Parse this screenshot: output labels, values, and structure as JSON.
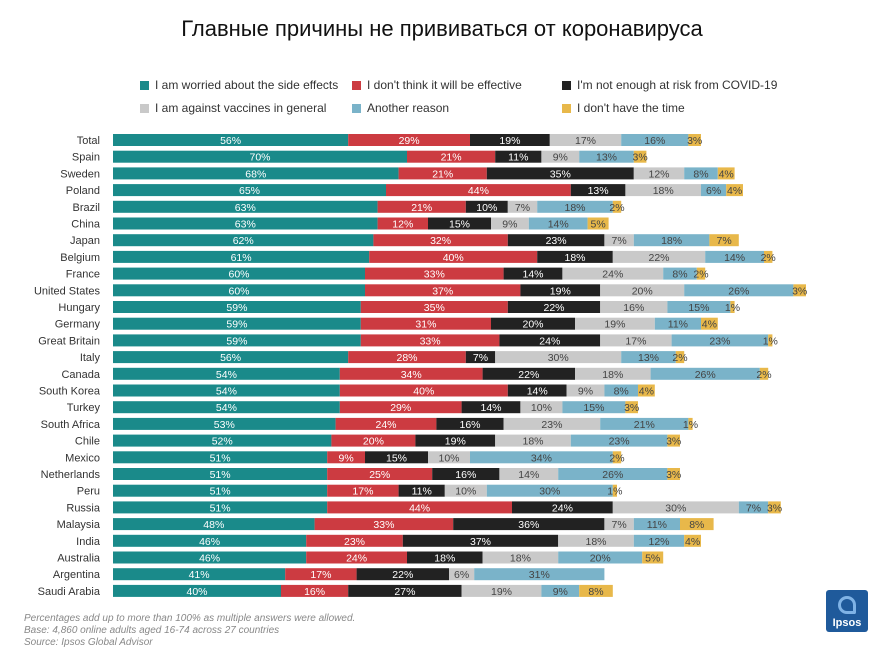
{
  "chart_data": {
    "type": "bar",
    "orientation": "horizontal",
    "stacked": true,
    "title": "Главные причины не прививаться от коронавируса",
    "categories": [
      "Total",
      "Spain",
      "Sweden",
      "Poland",
      "Brazil",
      "China",
      "Japan",
      "Belgium",
      "France",
      "United States",
      "Hungary",
      "Germany",
      "Great Britain",
      "Italy",
      "Canada",
      "South Korea",
      "Turkey",
      "South Africa",
      "Chile",
      "Mexico",
      "Netherlands",
      "Peru",
      "Russia",
      "Malaysia",
      "India",
      "Australia",
      "Argentina",
      "Saudi Arabia"
    ],
    "series": [
      {
        "name": "I am worried about the side effects",
        "color": "#1a8a8a",
        "values": [
          56,
          70,
          68,
          65,
          63,
          63,
          62,
          61,
          60,
          60,
          59,
          59,
          59,
          56,
          54,
          54,
          54,
          53,
          52,
          51,
          51,
          51,
          51,
          48,
          46,
          46,
          41,
          40
        ]
      },
      {
        "name": "I don't think it will be effective",
        "color": "#cc3b41",
        "values": [
          29,
          21,
          21,
          44,
          21,
          12,
          32,
          40,
          33,
          37,
          35,
          31,
          33,
          28,
          34,
          40,
          29,
          24,
          20,
          9,
          25,
          17,
          44,
          33,
          23,
          24,
          17,
          16
        ]
      },
      {
        "name": "I'm not enough at risk from COVID-19",
        "color": "#222222",
        "values": [
          19,
          11,
          35,
          13,
          10,
          15,
          23,
          18,
          14,
          19,
          22,
          20,
          24,
          7,
          22,
          14,
          14,
          16,
          19,
          15,
          16,
          11,
          24,
          36,
          37,
          18,
          22,
          27
        ]
      },
      {
        "name": "I am against vaccines in general",
        "color": "#c9c9c9",
        "values": [
          17,
          9,
          12,
          18,
          7,
          9,
          7,
          22,
          24,
          20,
          16,
          19,
          17,
          30,
          18,
          9,
          10,
          23,
          18,
          10,
          14,
          10,
          30,
          7,
          18,
          18,
          6,
          19
        ]
      },
      {
        "name": "Another reason",
        "color": "#7ab3c9",
        "values": [
          16,
          13,
          8,
          6,
          18,
          14,
          18,
          14,
          8,
          26,
          15,
          11,
          23,
          13,
          26,
          8,
          15,
          21,
          23,
          34,
          26,
          30,
          7,
          11,
          12,
          20,
          31,
          9
        ]
      },
      {
        "name": "I don't have the time",
        "color": "#e8b84a",
        "values": [
          3,
          3,
          4,
          4,
          2,
          5,
          7,
          2,
          2,
          3,
          1,
          4,
          1,
          2,
          2,
          4,
          3,
          1,
          3,
          2,
          3,
          1,
          3,
          8,
          4,
          5,
          null,
          8
        ]
      }
    ],
    "value_suffix": "%",
    "legend_position": "top",
    "grid": false
  },
  "footnotes": [
    "Percentages add up to more than 100% as multiple answers were allowed.",
    "Base: 4,860 online adults aged 16-74 across 27 countries",
    "Source: Ipsos Global Advisor"
  ],
  "logo": {
    "text": "Ipsos"
  }
}
